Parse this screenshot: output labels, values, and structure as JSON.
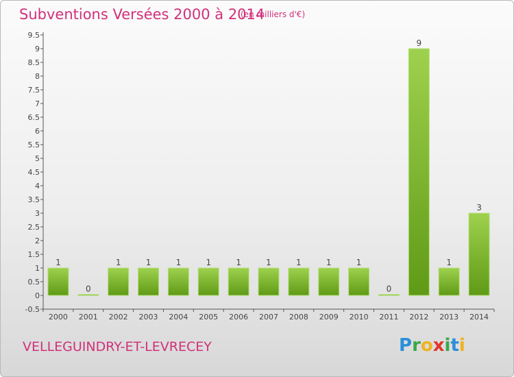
{
  "header": {
    "title": "Subventions Versées 2000 à 2014",
    "subtitle": "(en milliers d'€)"
  },
  "footer": {
    "commune": "VELLEGUINDRY-ET-LEVRECEY",
    "brand": "Proxiti"
  },
  "colors": {
    "title": "#d1307a",
    "bar_top": "#9ed14e",
    "bar_bottom": "#5f9a16",
    "bar_edge": "#b5e07a"
  },
  "chart_data": {
    "type": "bar",
    "title": "Subventions Versées 2000 à 2014",
    "xlabel": "",
    "ylabel": "",
    "categories": [
      "2000",
      "2001",
      "2002",
      "2003",
      "2004",
      "2005",
      "2006",
      "2007",
      "2008",
      "2009",
      "2010",
      "2011",
      "2012",
      "2013",
      "2014"
    ],
    "values": [
      1,
      0,
      1,
      1,
      1,
      1,
      1,
      1,
      1,
      1,
      1,
      0,
      9,
      1,
      3
    ],
    "value_labels": [
      "1",
      "0",
      "1",
      "1",
      "1",
      "1",
      "1",
      "1",
      "1",
      "1",
      "1",
      "0",
      "9",
      "1",
      "3"
    ],
    "yticks": [
      "-0.5",
      "0",
      "0.5",
      "1",
      "1.5",
      "2",
      "2.5",
      "3",
      "3.5",
      "4",
      "4.5",
      "5",
      "5.5",
      "6",
      "6.5",
      "7",
      "7.5",
      "8",
      "8.5",
      "9",
      "9.5"
    ],
    "ylim": [
      -0.5,
      9.5
    ],
    "grid": false,
    "legend": "none"
  }
}
